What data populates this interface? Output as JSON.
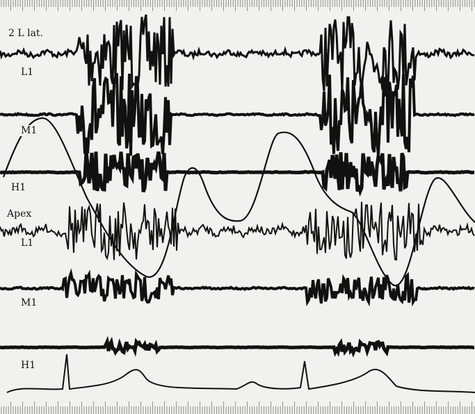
{
  "labels": [
    "2 L lat.",
    "L1",
    "M1",
    "H1",
    "Apex",
    "L1",
    "M1",
    "H1"
  ]
}
